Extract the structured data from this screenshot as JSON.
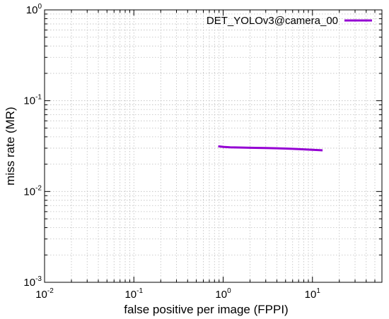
{
  "chart_data": {
    "type": "line",
    "title": "",
    "xlabel": "false positive per image (FPPI)",
    "ylabel": "miss rate (MR)",
    "x_scale": "log",
    "y_scale": "log",
    "xlim": [
      0.01,
      60
    ],
    "ylim": [
      0.001,
      1
    ],
    "x_ticks": [
      {
        "base": "10",
        "exp": "-2"
      },
      {
        "base": "10",
        "exp": "-1"
      },
      {
        "base": "10",
        "exp": "0"
      },
      {
        "base": "10",
        "exp": "1"
      }
    ],
    "y_ticks": [
      {
        "base": "10",
        "exp": "-3"
      },
      {
        "base": "10",
        "exp": "-2"
      },
      {
        "base": "10",
        "exp": "-1"
      },
      {
        "base": "10",
        "exp": "0"
      }
    ],
    "grid": true,
    "legend_position": "top-right",
    "series": [
      {
        "name": "DET_YOLOv3@camera_00",
        "color": "#9400d3",
        "x": [
          0.88,
          1.0,
          1.2,
          1.5,
          2,
          3,
          4,
          5,
          6,
          7,
          8,
          10,
          12,
          13
        ],
        "y": [
          0.0315,
          0.031,
          0.0306,
          0.0305,
          0.0303,
          0.0301,
          0.0299,
          0.0297,
          0.0295,
          0.0293,
          0.0291,
          0.0288,
          0.0285,
          0.0284
        ]
      }
    ]
  }
}
